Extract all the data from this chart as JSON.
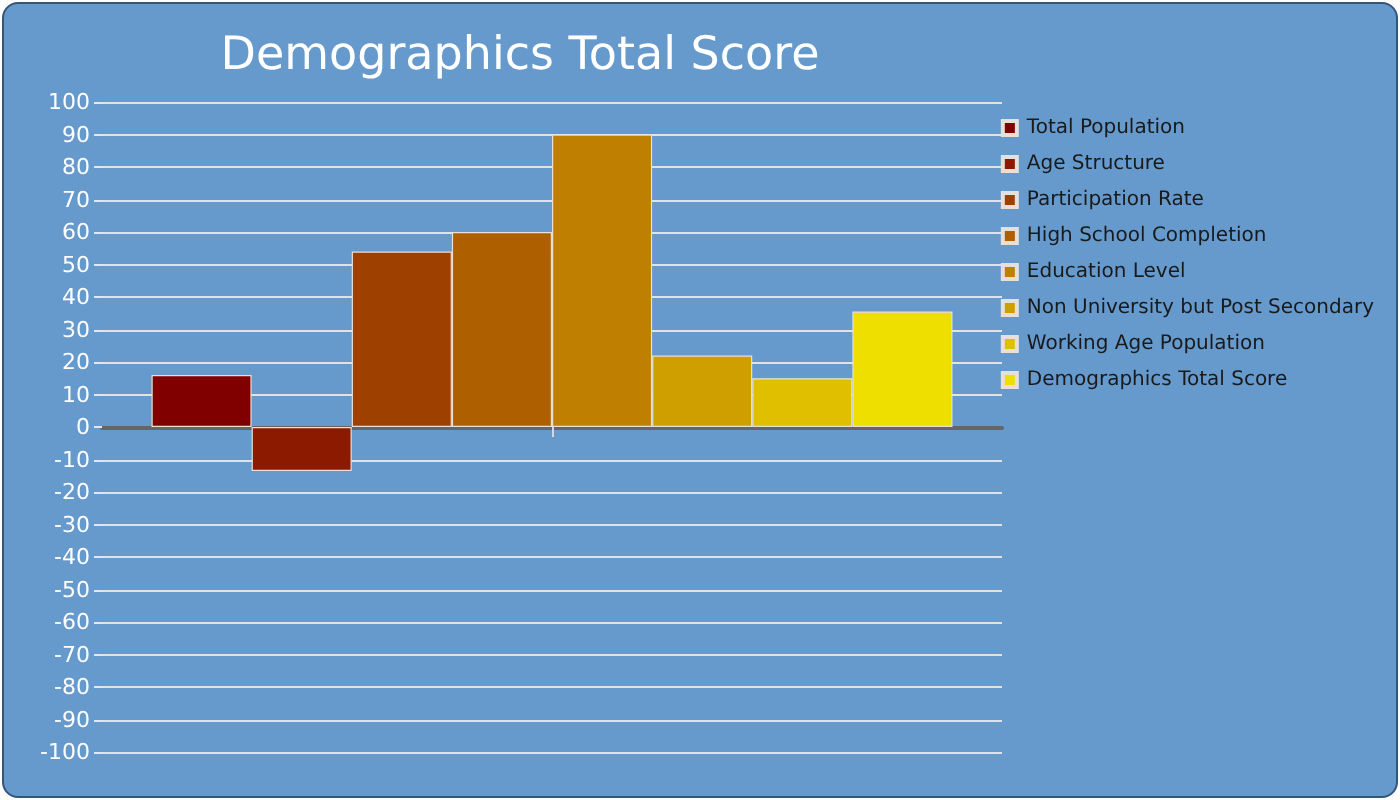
{
  "chart_data": {
    "type": "bar",
    "title": "Demographics Total Score",
    "categories": [
      null
    ],
    "series": [
      {
        "name": "Total Population",
        "color": "#800000",
        "values": [
          16
        ]
      },
      {
        "name": "Age Structure",
        "color": "#8b1a00",
        "values": [
          -13.5
        ]
      },
      {
        "name": "Participation Rate",
        "color": "#9e4000",
        "values": [
          54
        ]
      },
      {
        "name": "High School Completion",
        "color": "#ae6000",
        "values": [
          60
        ]
      },
      {
        "name": "Education Level",
        "color": "#bf7f00",
        "values": [
          90
        ]
      },
      {
        "name": "Non University but Post Secondary",
        "color": "#cf9f00",
        "values": [
          22
        ]
      },
      {
        "name": "Working Age Population",
        "color": "#dfbf00",
        "values": [
          15
        ]
      },
      {
        "name": "Demographics Total Score",
        "color": "#efdf00",
        "values": [
          35.5
        ]
      }
    ],
    "ylim": [
      -100,
      100
    ],
    "yticks": [
      -100,
      -90,
      -80,
      -70,
      -60,
      -50,
      -40,
      -30,
      -20,
      -10,
      0,
      10,
      20,
      30,
      40,
      50,
      60,
      70,
      80,
      90,
      100
    ],
    "grid": "y",
    "legend": "right"
  }
}
